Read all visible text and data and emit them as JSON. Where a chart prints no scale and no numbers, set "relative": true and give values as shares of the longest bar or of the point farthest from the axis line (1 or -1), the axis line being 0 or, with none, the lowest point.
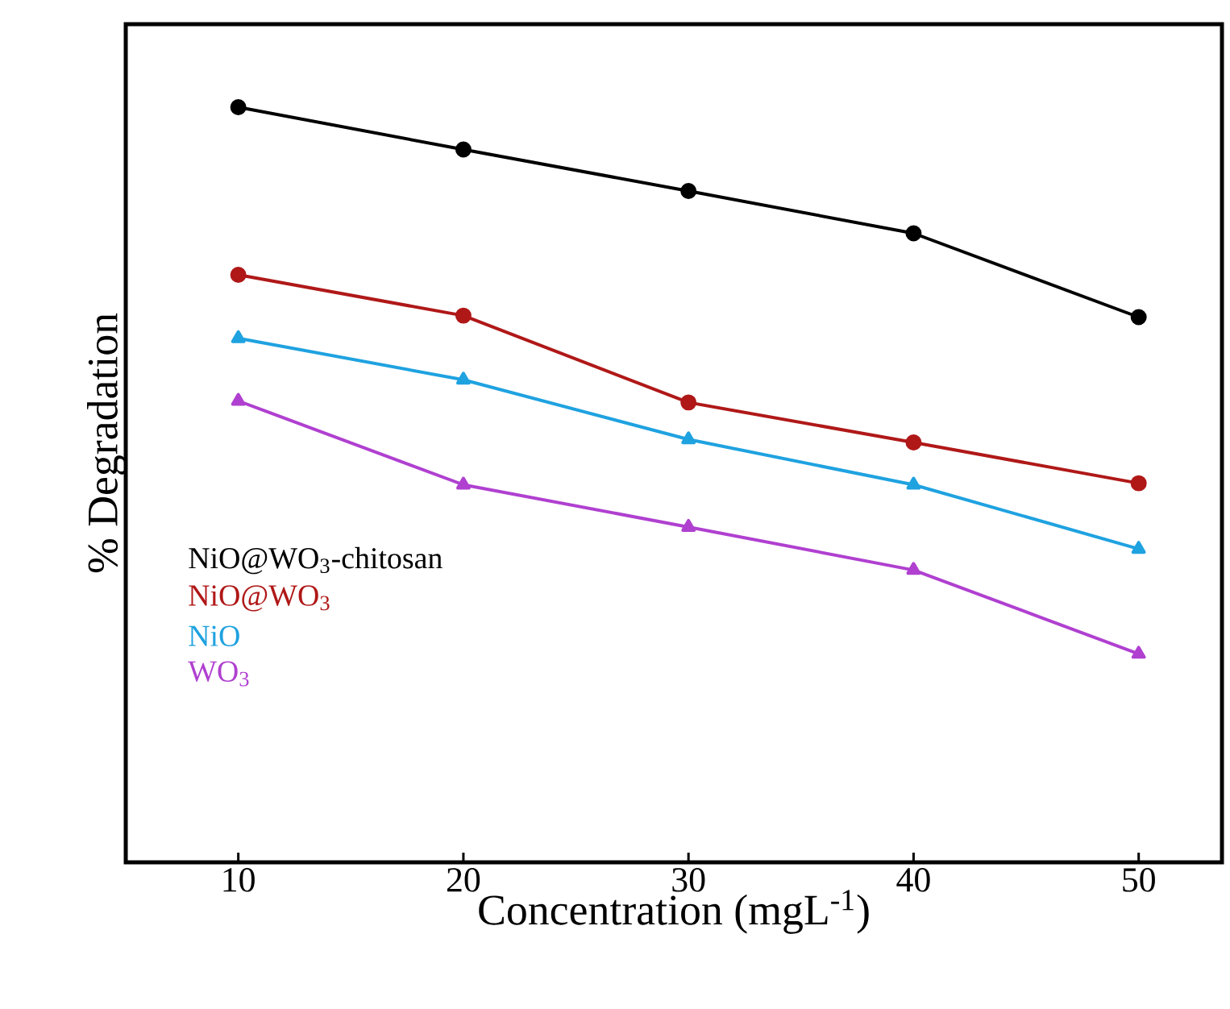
{
  "chart_data": {
    "type": "line",
    "relative": true,
    "xlabel": "Concentration (mgL$^{-1}$)",
    "ylabel": "% Degradation",
    "x": [
      10,
      20,
      30,
      40,
      50
    ],
    "xlim": [
      5,
      53.7
    ],
    "xticks": [
      10,
      20,
      30,
      40,
      50
    ],
    "legend": "left",
    "line_style": "solid",
    "series": [
      {
        "name": "NiO@WO$_{3}$-chitosan",
        "color": "#000000",
        "marker": "circle",
        "values": [
          1,
          0.944,
          0.889,
          0.833,
          0.722
        ]
      },
      {
        "name": "NiO@WO$_{3}$",
        "color": "#b01818",
        "marker": "circle",
        "values": [
          0.778,
          0.724,
          0.609,
          0.556,
          0.502
        ]
      },
      {
        "name": "NiO",
        "color": "#1fa2e0",
        "marker": "triangle",
        "values": [
          0.694,
          0.639,
          0.56,
          0.5,
          0.415
        ]
      },
      {
        "name": "WO$_{3}$",
        "color": "#b040d0",
        "marker": "triangle",
        "values": [
          0.611,
          0.5,
          0.444,
          0.387,
          0.276
        ]
      }
    ]
  }
}
